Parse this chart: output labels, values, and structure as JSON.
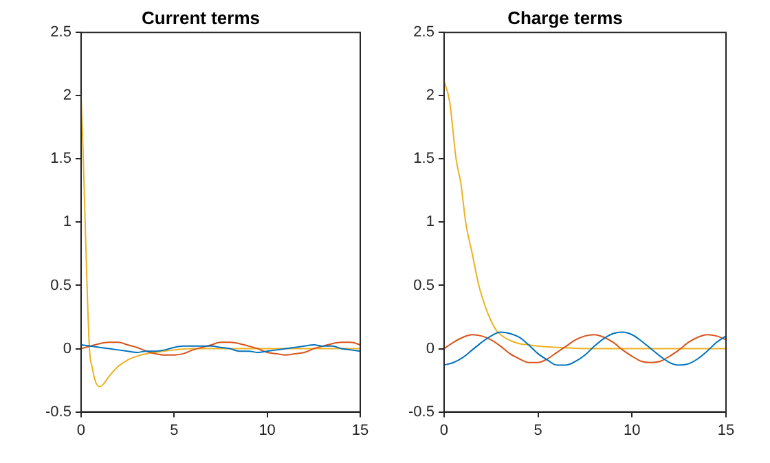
{
  "chart_data": [
    {
      "type": "line",
      "title": "Current terms",
      "xlim": [
        0,
        15
      ],
      "xticks": [
        0,
        5,
        10,
        15
      ],
      "ylim": [
        -0.5,
        2.5
      ],
      "yticks": [
        -0.5,
        0,
        0.5,
        1,
        1.5,
        2,
        2.5
      ],
      "grid": false,
      "legend": false,
      "marker": "none",
      "series": [
        {
          "color": "#0072bd",
          "x": [
            0,
            0.5,
            1,
            1.5,
            2,
            2.5,
            3,
            3.5,
            4,
            4.5,
            5,
            5.5,
            6,
            6.5,
            7,
            7.5,
            8,
            8.5,
            9,
            9.5,
            10,
            10.5,
            11,
            11.5,
            12,
            12.5,
            13,
            13.5,
            14,
            14.5,
            15
          ],
          "values": [
            0.03,
            0.02,
            0.01,
            0,
            -0.01,
            -0.02,
            -0.03,
            -0.02,
            -0.02,
            -0.01,
            0.01,
            0.02,
            0.02,
            0.02,
            0.02,
            0.01,
            0,
            -0.02,
            -0.02,
            -0.03,
            -0.02,
            -0.01,
            0,
            0.01,
            0.02,
            0.03,
            0.02,
            0.02,
            0,
            -0.01,
            -0.02
          ]
        },
        {
          "color": "#d95319",
          "x": [
            0,
            0.5,
            1,
            1.5,
            2,
            2.5,
            3,
            3.5,
            4,
            4.5,
            5,
            5.5,
            6,
            6.5,
            7,
            7.5,
            8,
            8.5,
            9,
            9.5,
            10,
            10.5,
            11,
            11.5,
            12,
            12.5,
            13,
            13.5,
            14,
            14.5,
            15
          ],
          "values": [
            0,
            0.02,
            0.04,
            0.05,
            0.05,
            0.03,
            0.01,
            -0.02,
            -0.04,
            -0.05,
            -0.05,
            -0.04,
            -0.01,
            0.01,
            0.03,
            0.05,
            0.05,
            0.04,
            0.02,
            0,
            -0.03,
            -0.04,
            -0.05,
            -0.04,
            -0.03,
            0,
            0.02,
            0.04,
            0.05,
            0.05,
            0.03
          ]
        },
        {
          "color": "#edb120",
          "x": [
            0,
            0.1,
            0.2,
            0.3,
            0.45,
            0.6,
            0.8,
            1,
            1.2,
            1.5,
            2,
            2.5,
            3,
            3.5,
            4,
            5,
            6,
            8,
            10,
            12,
            15
          ],
          "values": [
            2,
            1.6,
            1.1,
            0.6,
            0,
            -0.15,
            -0.27,
            -0.3,
            -0.28,
            -0.22,
            -0.14,
            -0.09,
            -0.06,
            -0.04,
            -0.03,
            -0.01,
            0,
            0,
            0,
            0,
            0
          ]
        }
      ]
    },
    {
      "type": "line",
      "title": "Charge terms",
      "xlim": [
        0,
        15
      ],
      "xticks": [
        0,
        5,
        10,
        15
      ],
      "ylim": [
        -0.5,
        2.5
      ],
      "yticks": [
        -0.5,
        0,
        0.5,
        1,
        1.5,
        2,
        2.5
      ],
      "grid": false,
      "legend": false,
      "marker": "none",
      "series": [
        {
          "color": "#0072bd",
          "x": [
            0,
            0.5,
            1,
            1.5,
            2,
            2.5,
            3,
            3.5,
            4,
            4.5,
            5,
            5.5,
            6,
            6.5,
            7,
            7.5,
            8,
            8.5,
            9,
            9.5,
            10,
            10.5,
            11,
            11.5,
            12,
            12.5,
            13,
            13.5,
            14,
            14.5,
            15
          ],
          "values": [
            -0.13,
            -0.11,
            -0.07,
            -0.01,
            0.05,
            0.1,
            0.13,
            0.12,
            0.09,
            0.03,
            -0.04,
            -0.09,
            -0.13,
            -0.13,
            -0.1,
            -0.05,
            0.02,
            0.08,
            0.12,
            0.13,
            0.11,
            0.06,
            0,
            -0.06,
            -0.11,
            -0.13,
            -0.12,
            -0.08,
            -0.02,
            0.05,
            0.1
          ]
        },
        {
          "color": "#d95319",
          "x": [
            0,
            0.5,
            1,
            1.5,
            2,
            2.5,
            3,
            3.5,
            4,
            4.5,
            5,
            5.5,
            6,
            6.5,
            7,
            7.5,
            8,
            8.5,
            9,
            9.5,
            10,
            10.5,
            11,
            11.5,
            12,
            12.5,
            13,
            13.5,
            14,
            14.5,
            15
          ],
          "values": [
            0,
            0.05,
            0.09,
            0.11,
            0.1,
            0.07,
            0.02,
            -0.04,
            -0.08,
            -0.11,
            -0.11,
            -0.08,
            -0.03,
            0.02,
            0.07,
            0.1,
            0.11,
            0.09,
            0.05,
            -0.01,
            -0.06,
            -0.1,
            -0.11,
            -0.1,
            -0.06,
            -0.01,
            0.05,
            0.09,
            0.11,
            0.1,
            0.07
          ]
        },
        {
          "color": "#edb120",
          "x": [
            0,
            0.3,
            0.64,
            0.9,
            1.15,
            1.5,
            1.85,
            2.2,
            2.5,
            2.8,
            3.2,
            3.6,
            4,
            4.5,
            5,
            6,
            8,
            10,
            12,
            15
          ],
          "values": [
            2.12,
            1.95,
            1.5,
            1.3,
            1,
            0.75,
            0.5,
            0.33,
            0.22,
            0.14,
            0.09,
            0.06,
            0.04,
            0.03,
            0.02,
            0.01,
            0,
            0,
            0,
            0
          ]
        }
      ]
    }
  ]
}
